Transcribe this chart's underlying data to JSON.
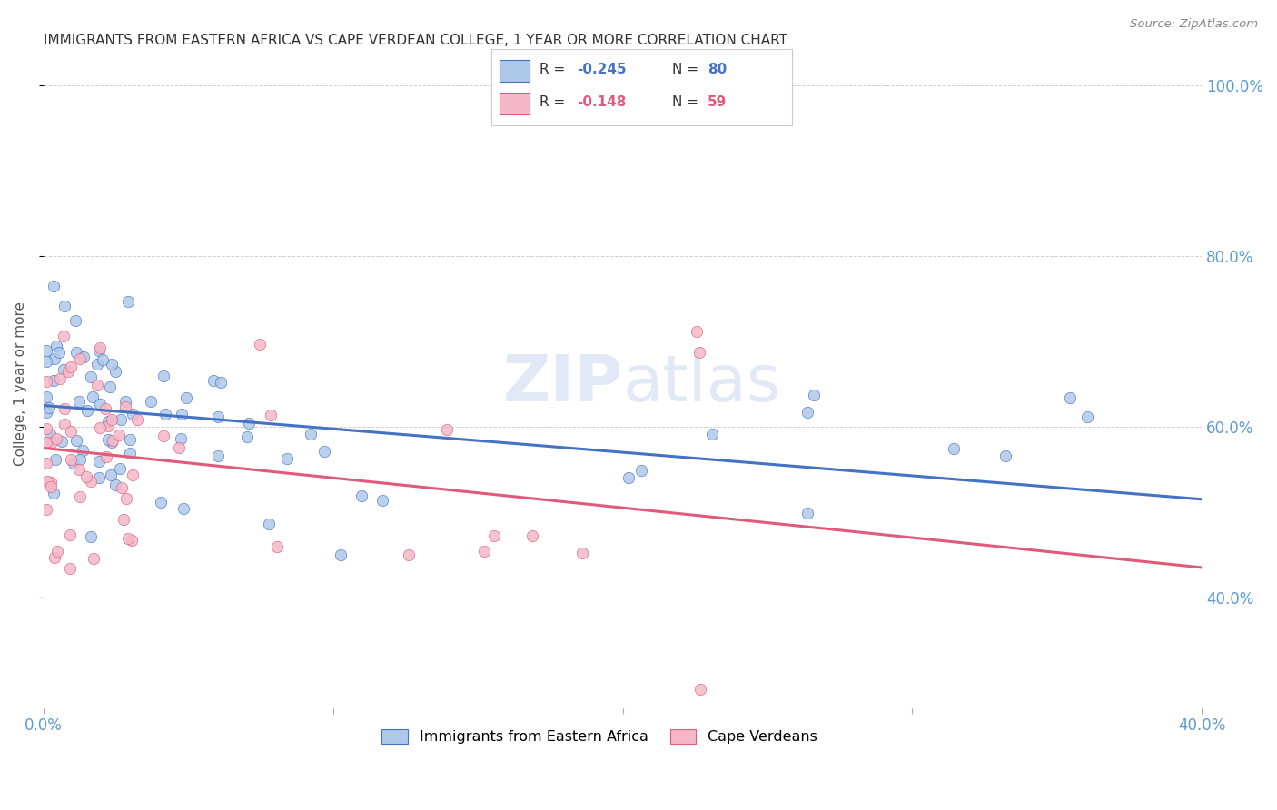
{
  "title": "IMMIGRANTS FROM EASTERN AFRICA VS CAPE VERDEAN COLLEGE, 1 YEAR OR MORE CORRELATION CHART",
  "source": "Source: ZipAtlas.com",
  "ylabel": "College, 1 year or more",
  "xlim": [
    0.0,
    0.4
  ],
  "ylim": [
    0.27,
    1.03
  ],
  "yticks": [
    0.4,
    0.6,
    0.8,
    1.0
  ],
  "xticks": [
    0.0,
    0.1,
    0.2,
    0.3,
    0.4
  ],
  "xtick_labels": [
    "0.0%",
    "",
    "",
    "",
    "40.0%"
  ],
  "scatter_blue_color": "#aec8ea",
  "scatter_pink_color": "#f4b8c8",
  "line_blue_color": "#4472c4",
  "line_pink_color": "#e05a7a",
  "watermark_zip": "ZIP",
  "watermark_atlas": "atlas",
  "legend_bottom_blue": "Immigrants from Eastern Africa",
  "legend_bottom_pink": "Cape Verdeans",
  "title_fontsize": 11,
  "tick_color": "#5b9bd5",
  "grid_color": "#d0d0d0",
  "background_color": "#ffffff",
  "blue_line_x0": 0.0,
  "blue_line_x1": 0.4,
  "blue_line_y0": 0.625,
  "blue_line_y1": 0.515,
  "pink_line_x0": 0.0,
  "pink_line_x1": 0.4,
  "pink_line_y0": 0.575,
  "pink_line_y1": 0.435
}
